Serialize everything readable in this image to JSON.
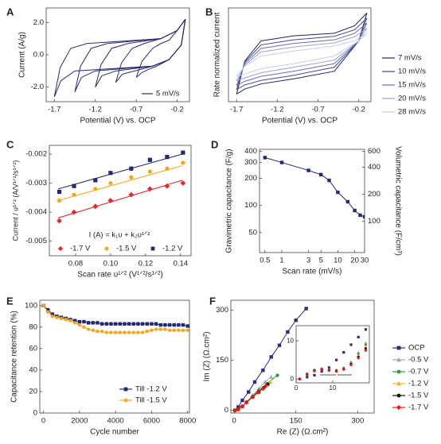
{
  "chart_data": [
    {
      "type": "line",
      "label": "A",
      "xlabel": "Potential (V) vs. OCP",
      "ylabel": "Current (A/g)",
      "xlim": [
        -1.8,
        -0.05
      ],
      "ylim": [
        -2.9,
        2.9
      ],
      "xticks": [
        -1.7,
        -1.2,
        -0.7,
        -0.2
      ],
      "yticks": [
        {
          "value": -2,
          "label": "-2.0"
        },
        {
          "value": 0,
          "label": "0.0"
        },
        {
          "value": 2,
          "label": "2.0"
        }
      ],
      "legend_label": "5 mV/s",
      "color": "#262a6e",
      "series": [
        {
          "x": [
            -1.7,
            -1.63,
            -1.5,
            -1.3,
            -0.4,
            -0.2,
            -0.1,
            -0.15,
            -0.3,
            -0.5,
            -1.45,
            -1.62,
            -1.7
          ],
          "values": [
            -2.6,
            -0.8,
            0.4,
            0.7,
            1.0,
            1.5,
            2.2,
            0.6,
            -0.3,
            -0.7,
            -1.0,
            -1.6,
            -2.6
          ]
        },
        {
          "x": [
            -1.45,
            -1.38,
            -1.25,
            -1.05,
            -0.4,
            -0.2,
            -0.1,
            -0.15,
            -0.3,
            -0.5,
            -1.2,
            -1.37,
            -1.45
          ],
          "values": [
            -2.3,
            -0.7,
            0.4,
            0.7,
            1.0,
            1.5,
            2.2,
            0.6,
            -0.3,
            -0.7,
            -1.0,
            -1.4,
            -2.3
          ]
        },
        {
          "x": [
            -1.2,
            -1.13,
            -1.0,
            -0.8,
            -0.4,
            -0.2,
            -0.1,
            -0.15,
            -0.3,
            -0.5,
            -0.95,
            -1.12,
            -1.2
          ],
          "values": [
            -2.0,
            -0.6,
            0.4,
            0.7,
            1.0,
            1.5,
            2.2,
            0.6,
            -0.3,
            -0.7,
            -1.0,
            -1.3,
            -2.0
          ]
        },
        {
          "x": [
            -0.95,
            -0.88,
            -0.75,
            -0.6,
            -0.4,
            -0.2,
            -0.1,
            -0.15,
            -0.3,
            -0.5,
            -0.72,
            -0.87,
            -0.95
          ],
          "values": [
            -1.7,
            -0.5,
            0.4,
            0.7,
            1.0,
            1.5,
            2.2,
            0.6,
            -0.3,
            -0.7,
            -1.0,
            -1.2,
            -1.7
          ]
        },
        {
          "x": [
            -0.7,
            -0.63,
            -0.5,
            -0.4,
            -0.3,
            -0.2,
            -0.1,
            -0.15,
            -0.3,
            -0.45,
            -0.55,
            -0.63,
            -0.7
          ],
          "values": [
            -1.4,
            -0.4,
            0.4,
            0.7,
            0.9,
            1.5,
            2.2,
            0.6,
            -0.3,
            -0.7,
            -0.9,
            -1.1,
            -1.4
          ]
        }
      ]
    },
    {
      "type": "line",
      "label": "B",
      "xlabel": "Potential (V) vs. OCP",
      "ylabel": "Rate normalized current",
      "xlim": [
        -1.8,
        -0.05
      ],
      "ylim": [
        -0.9,
        0.95
      ],
      "xticks": [
        -1.7,
        -1.2,
        -0.7,
        -0.2
      ],
      "yticks": [],
      "series": [
        {
          "name": "7 mV/s",
          "color": "#1f2360",
          "x": [
            -1.7,
            -1.6,
            -1.4,
            -1.0,
            -0.5,
            -0.25,
            -0.1,
            -0.2,
            -0.5,
            -1.0,
            -1.4,
            -1.6,
            -1.7
          ],
          "values": [
            -0.75,
            -0.1,
            0.3,
            0.4,
            0.45,
            0.6,
            0.85,
            0.3,
            -0.3,
            -0.45,
            -0.55,
            -0.65,
            -0.75
          ]
        },
        {
          "name": "10 mV/s",
          "color": "#3d4a96",
          "x": [
            -1.7,
            -1.6,
            -1.4,
            -1.0,
            -0.5,
            -0.25,
            -0.1,
            -0.2,
            -0.5,
            -1.0,
            -1.4,
            -1.6,
            -1.7
          ],
          "values": [
            -0.66,
            -0.12,
            0.22,
            0.32,
            0.39,
            0.52,
            0.75,
            0.3,
            -0.22,
            -0.38,
            -0.48,
            -0.57,
            -0.66
          ]
        },
        {
          "name": "15 mV/s",
          "color": "#6470b8",
          "x": [
            -1.7,
            -1.6,
            -1.4,
            -1.0,
            -0.5,
            -0.25,
            -0.1,
            -0.2,
            -0.5,
            -1.0,
            -1.4,
            -1.6,
            -1.7
          ],
          "values": [
            -0.58,
            -0.15,
            0.15,
            0.25,
            0.32,
            0.45,
            0.65,
            0.3,
            -0.15,
            -0.3,
            -0.4,
            -0.5,
            -0.58
          ]
        },
        {
          "name": "20 mV/s",
          "color": "#98a2d6",
          "x": [
            -1.7,
            -1.6,
            -1.4,
            -1.0,
            -0.5,
            -0.25,
            -0.1,
            -0.2,
            -0.5,
            -1.0,
            -1.4,
            -1.6,
            -1.7
          ],
          "values": [
            -0.49,
            -0.18,
            0.08,
            0.18,
            0.26,
            0.38,
            0.55,
            0.3,
            -0.08,
            -0.22,
            -0.33,
            -0.43,
            -0.49
          ]
        },
        {
          "name": "28 mV/s",
          "color": "#c9cde8",
          "x": [
            -1.7,
            -1.6,
            -1.4,
            -1.0,
            -0.5,
            -0.25,
            -0.1,
            -0.2,
            -0.5,
            -1.0,
            -1.4,
            -1.6,
            -1.7
          ],
          "values": [
            -0.4,
            -0.2,
            0.0,
            0.1,
            0.2,
            0.3,
            0.45,
            0.3,
            0.0,
            -0.15,
            -0.25,
            -0.35,
            -0.4
          ]
        }
      ]
    },
    {
      "type": "scatter",
      "label": "C",
      "xlabel": "Scan rate υ¹ᐟ² (V¹ᐟ²/s¹ᐟ²)",
      "ylabel": "Current / υ¹ᐟ² (A/V¹ᐟ²/s¹ᐟ²)",
      "annotation": "I (A) = k₁υ + k₂υ¹ᐟ²",
      "xlim": [
        0.065,
        0.146
      ],
      "ylim": [
        -0.0055,
        -0.0017
      ],
      "xticks": [
        0.08,
        {
          "value": 0.1,
          "label": "0.10"
        },
        0.12,
        0.14
      ],
      "yticks": [
        -0.005,
        -0.004,
        -0.003,
        -0.002
      ],
      "x": [
        0.0707,
        0.0791,
        0.0913,
        0.1,
        0.1118,
        0.1225,
        0.1323,
        0.1414
      ],
      "fit_x": [
        0.07,
        0.141
      ],
      "series": [
        {
          "name": "-1.7 V",
          "color": "#e8262b",
          "marker": "diamond",
          "values": [
            -0.0043,
            -0.004,
            -0.0038,
            -0.0036,
            -0.0034,
            -0.0032,
            -0.0031,
            -0.003
          ],
          "fit": [
            -0.0042,
            -0.0029
          ]
        },
        {
          "name": "-1.5 V",
          "color": "#f7a51c",
          "marker": "circle",
          "values": [
            -0.0036,
            -0.0034,
            -0.0032,
            -0.003,
            -0.0028,
            -0.0026,
            -0.0025,
            -0.0023
          ],
          "fit": [
            -0.0036,
            -0.0024
          ]
        },
        {
          "name": "-1.2 V",
          "color": "#232a73",
          "marker": "square",
          "values": [
            -0.0033,
            -0.0031,
            -0.0029,
            -0.00265,
            -0.0025,
            -0.0022,
            -0.0021,
            -0.00195
          ],
          "fit": [
            -0.0032,
            -0.002
          ]
        }
      ]
    },
    {
      "type": "line",
      "label": "D",
      "xlabel": "Scan rate (mV/s)",
      "ylabel": "Gravimetric capacitance (F/g)",
      "y2label": "Volumetric capacitance (F/cm³)",
      "xlog": true,
      "ylog": true,
      "xlim": [
        0.4,
        30
      ],
      "ylim": [
        30,
        420
      ],
      "y2lim": [
        45,
        630
      ],
      "xticks": [
        0.5,
        1,
        3,
        5,
        10,
        20,
        30
      ],
      "yticks": [
        50,
        100,
        200,
        300,
        400
      ],
      "y2ticks": [
        100,
        200,
        400,
        600
      ],
      "series": [
        {
          "color": "#232a73",
          "marker": "square",
          "x": [
            0.5,
            1,
            3,
            5,
            7,
            10,
            15,
            20,
            25,
            30
          ],
          "values": [
            340,
            300,
            245,
            220,
            190,
            140,
            110,
            88,
            78,
            75
          ]
        }
      ]
    },
    {
      "type": "line",
      "label": "E",
      "xlabel": "Cycle number",
      "ylabel": "Capacitance retention (%)",
      "xlim": [
        -200,
        8100
      ],
      "ylim": [
        0,
        105
      ],
      "xticks": [
        0,
        2000,
        4000,
        6000,
        8000
      ],
      "yticks": [
        0,
        20,
        40,
        60,
        80,
        100
      ],
      "x": [
        0,
        250,
        500,
        750,
        1000,
        1250,
        1500,
        1750,
        2000,
        2250,
        2500,
        2750,
        3000,
        3250,
        3500,
        3750,
        4000,
        4250,
        4500,
        4750,
        5000,
        5250,
        5500,
        5750,
        6000,
        6250,
        6500,
        6750,
        7000,
        7250,
        7500,
        7750,
        8000
      ],
      "series": [
        {
          "name": "Till -1.2 V",
          "color": "#232a73",
          "marker": "square",
          "values": [
            100,
            96,
            92,
            90,
            89,
            88,
            87,
            86,
            85,
            85,
            84,
            84,
            84,
            83,
            83,
            83,
            83,
            83,
            83,
            83,
            83,
            83,
            83,
            83,
            83,
            83,
            82,
            82,
            82,
            82,
            82,
            82,
            81
          ]
        },
        {
          "name": "Till -1.5 V",
          "color": "#f7a51c",
          "marker": "circle",
          "values": [
            100,
            94,
            90,
            89,
            88,
            87,
            86,
            84,
            82,
            80,
            78,
            77,
            76,
            76,
            75,
            75,
            75,
            75,
            75,
            75,
            75,
            75,
            75,
            76,
            77,
            78,
            78,
            78,
            77,
            77,
            77,
            77,
            77
          ]
        }
      ]
    },
    {
      "type": "line",
      "label": "F",
      "xlabel": "Re (Z) (Ω.cm²)",
      "ylabel": "Im (Z) (Ω.cm²)",
      "xlim": [
        -8,
        340
      ],
      "ylim": [
        -8,
        330
      ],
      "xticks": [
        0,
        150,
        300
      ],
      "yticks": [
        0,
        150,
        300
      ],
      "series": [
        {
          "name": "OCP",
          "color": "#2b2f7e",
          "marker": "square",
          "x": [
            2,
            10,
            20,
            35,
            50,
            70,
            90,
            110,
            130,
            150,
            175
          ],
          "values": [
            0,
            10,
            30,
            55,
            85,
            120,
            160,
            195,
            235,
            270,
            305
          ]
        },
        {
          "name": "-0.5 V",
          "color": "#9aa3c8",
          "marker": "triangle",
          "x": [
            2,
            10,
            20,
            30,
            45,
            60,
            75,
            90
          ],
          "values": [
            0,
            3,
            12,
            25,
            45,
            65,
            85,
            100
          ]
        },
        {
          "name": "-0.7 V",
          "color": "#2f9e44",
          "marker": "circle",
          "x": [
            2,
            10,
            20,
            30,
            45,
            60,
            80,
            105
          ],
          "values": [
            0,
            3,
            12,
            25,
            42,
            60,
            80,
            105
          ]
        },
        {
          "name": "-1.2 V",
          "color": "#f0b323",
          "marker": "triangle",
          "x": [
            2,
            10,
            20,
            30,
            45,
            60,
            75,
            88
          ],
          "values": [
            0,
            3,
            12,
            24,
            40,
            55,
            72,
            85
          ]
        },
        {
          "name": "-1.5 V",
          "color": "#111111",
          "marker": "circle",
          "x": [
            2,
            10,
            20,
            30,
            45,
            60,
            72,
            82
          ],
          "values": [
            0,
            3,
            12,
            24,
            40,
            55,
            68,
            78
          ]
        },
        {
          "name": "-1.7 V",
          "color": "#e41a1c",
          "marker": "diamond",
          "x": [
            2,
            10,
            20,
            30,
            45,
            58,
            70,
            78
          ],
          "values": [
            0,
            3,
            12,
            24,
            40,
            54,
            65,
            75
          ]
        }
      ],
      "inset": {
        "xlim": [
          0,
          20
        ],
        "ylim": [
          -1,
          14
        ],
        "xticks": [
          0,
          10
        ],
        "yticks": [
          0,
          10
        ],
        "x": [
          1,
          3,
          5,
          7,
          9,
          11,
          13,
          15,
          17,
          19
        ],
        "series": [
          {
            "values": [
              0,
              0.5,
              1,
              2,
              3,
              5,
              7,
              9,
              11,
              13
            ]
          },
          {
            "values": [
              0,
              1.5,
              2.5,
              2.8,
              2.6,
              2.4,
              3,
              4.5,
              7,
              9.5
            ]
          },
          {
            "values": [
              0,
              1.4,
              2.4,
              2.7,
              2.5,
              2.3,
              2.9,
              4.3,
              6.6,
              9
            ]
          },
          {
            "values": [
              0,
              1.3,
              2.3,
              2.6,
              2.4,
              2.2,
              2.8,
              4.1,
              6.2,
              8.5
            ]
          },
          {
            "values": [
              0,
              1.2,
              2.2,
              2.5,
              2.3,
              2.1,
              2.6,
              3.9,
              5.8,
              8
            ]
          },
          {
            "values": [
              0,
              1.1,
              2.1,
              2.4,
              2.2,
              2,
              2.5,
              3.7,
              5.5,
              7.5
            ]
          }
        ]
      }
    }
  ]
}
